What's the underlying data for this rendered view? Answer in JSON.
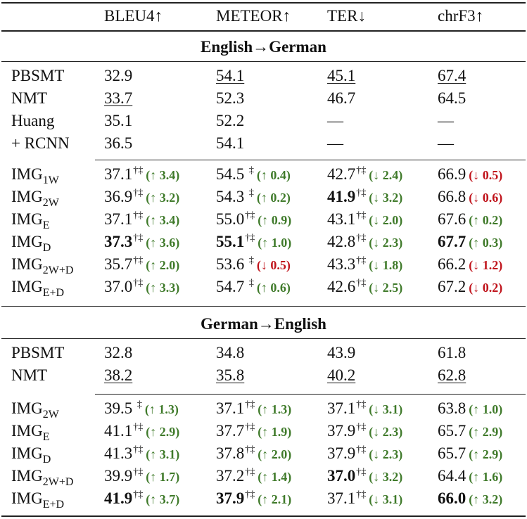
{
  "table": {
    "columns": [
      "",
      "BLEU4↑",
      "METEOR↑",
      "TER↓",
      "chrF3↑"
    ],
    "colors": {
      "improvement": "#3f7a2a",
      "degradation": "#c0141c"
    },
    "sections": [
      {
        "title": "English→German",
        "baselines": [
          {
            "system": "PBSMT",
            "cells": [
              {
                "value": "32.9"
              },
              {
                "value": "54.1",
                "underline": true
              },
              {
                "value": "45.1",
                "underline": true
              },
              {
                "value": "67.4",
                "underline": true
              }
            ]
          },
          {
            "system": "NMT",
            "cells": [
              {
                "value": "33.7",
                "underline": true
              },
              {
                "value": "52.3"
              },
              {
                "value": "46.7"
              },
              {
                "value": "64.5"
              }
            ]
          },
          {
            "system": "Huang",
            "cells": [
              {
                "value": "35.1"
              },
              {
                "value": "52.2"
              },
              {
                "value": "—"
              },
              {
                "value": "—"
              }
            ]
          },
          {
            "system": "+ RCNN",
            "cells": [
              {
                "value": "36.5"
              },
              {
                "value": "54.1"
              },
              {
                "value": "—"
              },
              {
                "value": "—"
              }
            ]
          }
        ],
        "models": [
          {
            "system": "IMG",
            "subscript": "1W",
            "cells": [
              {
                "value": "37.1",
                "sig": "†‡",
                "delta": "(↑ 3.4)",
                "delta_type": "good"
              },
              {
                "value": "54.5",
                "sig": " ‡",
                "delta": "(↑ 0.4)",
                "delta_type": "good"
              },
              {
                "value": "42.7",
                "sig": "†‡",
                "delta": "(↓ 2.4)",
                "delta_type": "good"
              },
              {
                "value": "66.9",
                "sig": "",
                "delta": "(↓ 0.5)",
                "delta_type": "bad"
              }
            ]
          },
          {
            "system": "IMG",
            "subscript": "2W",
            "cells": [
              {
                "value": "36.9",
                "sig": "†‡",
                "delta": "(↑ 3.2)",
                "delta_type": "good"
              },
              {
                "value": "54.3",
                "sig": " ‡",
                "delta": "(↑ 0.2)",
                "delta_type": "good"
              },
              {
                "value": "41.9",
                "bold": true,
                "sig": "†‡",
                "delta": "(↓ 3.2)",
                "delta_type": "good"
              },
              {
                "value": "66.8",
                "sig": "",
                "delta": "(↓ 0.6)",
                "delta_type": "bad"
              }
            ]
          },
          {
            "system": "IMG",
            "subscript": "E",
            "cells": [
              {
                "value": "37.1",
                "sig": "†‡",
                "delta": "(↑ 3.4)",
                "delta_type": "good"
              },
              {
                "value": "55.0",
                "sig": "†‡",
                "delta": "(↑ 0.9)",
                "delta_type": "good"
              },
              {
                "value": "43.1",
                "sig": "†‡",
                "delta": "(↓ 2.0)",
                "delta_type": "good"
              },
              {
                "value": "67.6",
                "sig": "",
                "delta": "(↑ 0.2)",
                "delta_type": "good"
              }
            ]
          },
          {
            "system": "IMG",
            "subscript": "D",
            "cells": [
              {
                "value": "37.3",
                "bold": true,
                "sig": "†‡",
                "delta": "(↑ 3.6)",
                "delta_type": "good"
              },
              {
                "value": "55.1",
                "bold": true,
                "sig": "†‡",
                "delta": "(↑ 1.0)",
                "delta_type": "good"
              },
              {
                "value": "42.8",
                "sig": "†‡",
                "delta": "(↓ 2.3)",
                "delta_type": "good"
              },
              {
                "value": "67.7",
                "bold": true,
                "sig": "",
                "delta": "(↑ 0.3)",
                "delta_type": "good"
              }
            ]
          },
          {
            "system": "IMG",
            "subscript": "2W+D",
            "cells": [
              {
                "value": "35.7",
                "sig": "†‡",
                "delta": "(↑ 2.0)",
                "delta_type": "good"
              },
              {
                "value": "53.6",
                "sig": " ‡",
                "delta": "(↓ 0.5)",
                "delta_type": "bad"
              },
              {
                "value": "43.3",
                "sig": "†‡",
                "delta": "(↓ 1.8)",
                "delta_type": "good"
              },
              {
                "value": "66.2",
                "sig": "",
                "delta": "(↓ 1.2)",
                "delta_type": "bad"
              }
            ]
          },
          {
            "system": "IMG",
            "subscript": "E+D",
            "cells": [
              {
                "value": "37.0",
                "sig": "†‡",
                "delta": "(↑ 3.3)",
                "delta_type": "good"
              },
              {
                "value": "54.7",
                "sig": " ‡",
                "delta": "(↑ 0.6)",
                "delta_type": "good"
              },
              {
                "value": "42.6",
                "sig": "†‡",
                "delta": "(↓ 2.5)",
                "delta_type": "good"
              },
              {
                "value": "67.2",
                "sig": "",
                "delta": "(↓ 0.2)",
                "delta_type": "bad"
              }
            ]
          }
        ]
      },
      {
        "title": "German→English",
        "baselines": [
          {
            "system": "PBSMT",
            "cells": [
              {
                "value": "32.8"
              },
              {
                "value": "34.8"
              },
              {
                "value": "43.9"
              },
              {
                "value": "61.8"
              }
            ]
          },
          {
            "system": "NMT",
            "cells": [
              {
                "value": "38.2",
                "underline": true
              },
              {
                "value": "35.8",
                "underline": true
              },
              {
                "value": "40.2",
                "underline": true
              },
              {
                "value": "62.8",
                "underline": true
              }
            ]
          }
        ],
        "models": [
          {
            "system": "IMG",
            "subscript": "2W",
            "cells": [
              {
                "value": "39.5",
                "sig": " ‡",
                "delta": "(↑ 1.3)",
                "delta_type": "good"
              },
              {
                "value": "37.1",
                "sig": "†‡",
                "delta": "(↑ 1.3)",
                "delta_type": "good"
              },
              {
                "value": "37.1",
                "sig": "†‡",
                "delta": "(↓ 3.1)",
                "delta_type": "good"
              },
              {
                "value": "63.8",
                "sig": "",
                "delta": "(↑ 1.0)",
                "delta_type": "good"
              }
            ]
          },
          {
            "system": "IMG",
            "subscript": "E",
            "cells": [
              {
                "value": "41.1",
                "sig": "†‡",
                "delta": "(↑ 2.9)",
                "delta_type": "good"
              },
              {
                "value": "37.7",
                "sig": "†‡",
                "delta": "(↑ 1.9)",
                "delta_type": "good"
              },
              {
                "value": "37.9",
                "sig": "†‡",
                "delta": "(↓ 2.3)",
                "delta_type": "good"
              },
              {
                "value": "65.7",
                "sig": "",
                "delta": "(↑ 2.9)",
                "delta_type": "good"
              }
            ]
          },
          {
            "system": "IMG",
            "subscript": "D",
            "cells": [
              {
                "value": "41.3",
                "sig": "†‡",
                "delta": "(↑ 3.1)",
                "delta_type": "good"
              },
              {
                "value": "37.8",
                "sig": "†‡",
                "delta": "(↑ 2.0)",
                "delta_type": "good"
              },
              {
                "value": "37.9",
                "sig": "†‡",
                "delta": "(↓ 2.3)",
                "delta_type": "good"
              },
              {
                "value": "65.7",
                "sig": "",
                "delta": "(↑ 2.9)",
                "delta_type": "good"
              }
            ]
          },
          {
            "system": "IMG",
            "subscript": "2W+D",
            "cells": [
              {
                "value": "39.9",
                "sig": "†‡",
                "delta": "(↑ 1.7)",
                "delta_type": "good"
              },
              {
                "value": "37.2",
                "sig": "†‡",
                "delta": "(↑ 1.4)",
                "delta_type": "good"
              },
              {
                "value": "37.0",
                "bold": true,
                "sig": "†‡",
                "delta": "(↓ 3.2)",
                "delta_type": "good"
              },
              {
                "value": "64.4",
                "sig": "",
                "delta": "(↑ 1.6)",
                "delta_type": "good"
              }
            ]
          },
          {
            "system": "IMG",
            "subscript": "E+D",
            "cells": [
              {
                "value": "41.9",
                "bold": true,
                "sig": "†‡",
                "delta": "(↑ 3.7)",
                "delta_type": "good"
              },
              {
                "value": "37.9",
                "bold": true,
                "sig": "†‡",
                "delta": "(↑ 2.1)",
                "delta_type": "good"
              },
              {
                "value": "37.1",
                "sig": "†‡",
                "delta": "(↓ 3.1)",
                "delta_type": "good"
              },
              {
                "value": "66.0",
                "bold": true,
                "sig": "",
                "delta": "(↑ 3.2)",
                "delta_type": "good"
              }
            ]
          }
        ]
      }
    ]
  }
}
